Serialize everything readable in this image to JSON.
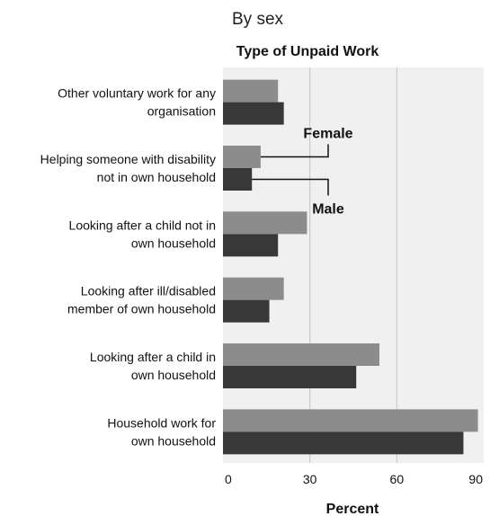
{
  "chart_data": {
    "type": "bar",
    "orientation": "horizontal",
    "subtitle": "By sex",
    "title": "Type of Unpaid Work",
    "xlabel": "Percent",
    "ylabel": "",
    "xlim": [
      0,
      90
    ],
    "xticks": [
      0,
      30,
      60,
      90
    ],
    "grid": true,
    "categories": [
      "Other voluntary work for any organisation",
      "Helping someone with disability not in own household",
      "Looking after a child not in own household",
      "Looking after ill/disabled member of own household",
      "Looking after a child in own household",
      "Household work for own household"
    ],
    "category_lines": [
      [
        "Other voluntary work for any",
        "organisation"
      ],
      [
        "Helping someone with disability",
        "not in own household"
      ],
      [
        "Looking after a child not in",
        "own household"
      ],
      [
        "Looking after ill/disabled",
        "member of own household"
      ],
      [
        "Looking after a child in",
        "own household"
      ],
      [
        "Household work for",
        "own household"
      ]
    ],
    "series": [
      {
        "name": "Female",
        "color": "#8c8c8c",
        "values": [
          19,
          13,
          29,
          21,
          54,
          88
        ]
      },
      {
        "name": "Male",
        "color": "#383838",
        "values": [
          21,
          10,
          19,
          16,
          46,
          83
        ]
      }
    ],
    "plot_background": "#f0f0f0",
    "legend": "inline callouts"
  }
}
